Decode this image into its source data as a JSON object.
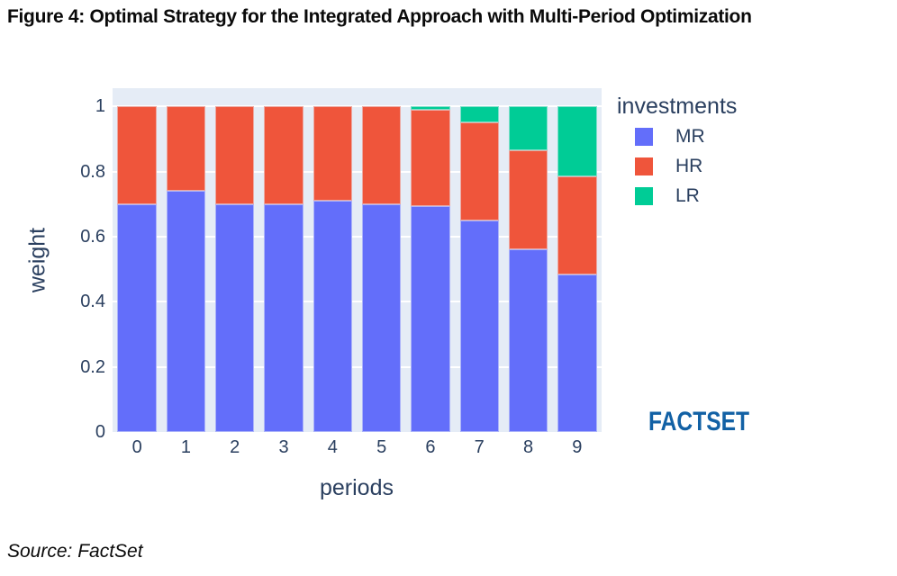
{
  "title": "Figure 4: Optimal Strategy for the Integrated Approach with Multi-Period Optimization",
  "source_note": "Source: FactSet",
  "branding": {
    "logo_text": "FACTSET",
    "logo_color": "#1261A5"
  },
  "legend": {
    "title": "investments"
  },
  "chart_data": {
    "type": "bar",
    "stacked": true,
    "title": "",
    "xlabel": "periods",
    "ylabel": "weight",
    "categories": [
      "0",
      "1",
      "2",
      "3",
      "4",
      "5",
      "6",
      "7",
      "8",
      "9"
    ],
    "series": [
      {
        "name": "MR",
        "color": "#636EFA",
        "values": [
          0.7,
          0.74,
          0.7,
          0.7,
          0.71,
          0.7,
          0.695,
          0.65,
          0.56,
          0.485
        ]
      },
      {
        "name": "HR",
        "color": "#EF553B",
        "values": [
          0.3,
          0.26,
          0.3,
          0.3,
          0.29,
          0.3,
          0.295,
          0.3,
          0.305,
          0.3
        ]
      },
      {
        "name": "LR",
        "color": "#00CC96",
        "values": [
          0,
          0,
          0,
          0,
          0,
          0,
          0.01,
          0.05,
          0.135,
          0.215
        ]
      }
    ],
    "ylim": [
      0,
      1.056
    ],
    "yticks": {
      "values": [
        0,
        0.2,
        0.4,
        0.6,
        0.8,
        1
      ],
      "labels": [
        "0",
        "0.2",
        "0.4",
        "0.6",
        "0.8",
        "1"
      ]
    },
    "grid": true,
    "grid_color": "#FFFFFF",
    "plot_bg": "#E5ECF6",
    "bar_gap_fraction": 0.2,
    "legend_position": "right",
    "text_color": "#2A3F5F"
  }
}
